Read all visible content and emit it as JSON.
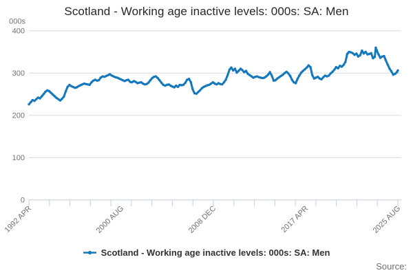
{
  "header": {
    "title": "Scotland - Working age inactive levels: 000s: SA: Men"
  },
  "footer": {
    "source_label": "Source:"
  },
  "colors": {
    "line": "#1478be",
    "grid": "#d9d9d9",
    "axis": "#c2cedb",
    "tick_label": "#707070",
    "title_text": "#262626"
  },
  "chart_data": {
    "type": "line",
    "title": "Scotland - Working age inactive levels: 000s: SA: Men",
    "unit_label": "000s",
    "ylabel": "000s",
    "xlabel": "",
    "ylim": [
      0,
      400
    ],
    "y_ticks": [
      0,
      100,
      200,
      300,
      400
    ],
    "x_range": [
      1992.25,
      2025.67
    ],
    "x_tick_labels": [
      "1992 APR",
      "2000 AUG",
      "2008 DEC",
      "2017 APR",
      "2025 AUG"
    ],
    "minor_tick_count": 19,
    "grid": true,
    "legend_position": "bottom",
    "series": [
      {
        "name": "Scotland - Working age inactive levels: 000s: SA: Men",
        "color": "#1478be",
        "points": [
          [
            1992.25,
            226
          ],
          [
            1992.42,
            231
          ],
          [
            1992.58,
            236
          ],
          [
            1992.75,
            234
          ],
          [
            1992.92,
            238
          ],
          [
            1993.08,
            242
          ],
          [
            1993.25,
            240
          ],
          [
            1993.42,
            245
          ],
          [
            1993.58,
            250
          ],
          [
            1993.75,
            256
          ],
          [
            1993.92,
            259
          ],
          [
            1994.08,
            257
          ],
          [
            1994.25,
            253
          ],
          [
            1994.42,
            249
          ],
          [
            1994.58,
            245
          ],
          [
            1994.75,
            241
          ],
          [
            1994.92,
            238
          ],
          [
            1995.08,
            235
          ],
          [
            1995.25,
            239
          ],
          [
            1995.42,
            244
          ],
          [
            1995.58,
            256
          ],
          [
            1995.75,
            267
          ],
          [
            1995.92,
            272
          ],
          [
            1996.08,
            269
          ],
          [
            1996.25,
            267
          ],
          [
            1996.42,
            265
          ],
          [
            1996.58,
            266
          ],
          [
            1996.75,
            269
          ],
          [
            1996.92,
            271
          ],
          [
            1997.08,
            273
          ],
          [
            1997.25,
            275
          ],
          [
            1997.42,
            274
          ],
          [
            1997.58,
            273
          ],
          [
            1997.75,
            272
          ],
          [
            1997.92,
            278
          ],
          [
            1998.08,
            282
          ],
          [
            1998.25,
            284
          ],
          [
            1998.42,
            282
          ],
          [
            1998.58,
            283
          ],
          [
            1998.75,
            289
          ],
          [
            1998.92,
            292
          ],
          [
            1999.08,
            291
          ],
          [
            1999.25,
            293
          ],
          [
            1999.42,
            295
          ],
          [
            1999.58,
            297
          ],
          [
            1999.75,
            294
          ],
          [
            1999.92,
            292
          ],
          [
            2000.08,
            290
          ],
          [
            2000.25,
            289
          ],
          [
            2000.42,
            287
          ],
          [
            2000.58,
            285
          ],
          [
            2000.75,
            283
          ],
          [
            2000.92,
            281
          ],
          [
            2001.08,
            283
          ],
          [
            2001.25,
            284
          ],
          [
            2001.42,
            279
          ],
          [
            2001.58,
            278
          ],
          [
            2001.75,
            281
          ],
          [
            2001.92,
            279
          ],
          [
            2002.08,
            276
          ],
          [
            2002.25,
            277
          ],
          [
            2002.42,
            278
          ],
          [
            2002.58,
            275
          ],
          [
            2002.75,
            273
          ],
          [
            2002.92,
            274
          ],
          [
            2003.08,
            277
          ],
          [
            2003.25,
            283
          ],
          [
            2003.42,
            288
          ],
          [
            2003.58,
            291
          ],
          [
            2003.75,
            292
          ],
          [
            2003.92,
            288
          ],
          [
            2004.08,
            283
          ],
          [
            2004.25,
            277
          ],
          [
            2004.42,
            272
          ],
          [
            2004.58,
            270
          ],
          [
            2004.75,
            272
          ],
          [
            2004.92,
            273
          ],
          [
            2005.08,
            270
          ],
          [
            2005.25,
            268
          ],
          [
            2005.42,
            266
          ],
          [
            2005.58,
            270
          ],
          [
            2005.75,
            267
          ],
          [
            2005.92,
            272
          ],
          [
            2006.08,
            271
          ],
          [
            2006.25,
            272
          ],
          [
            2006.42,
            277
          ],
          [
            2006.58,
            284
          ],
          [
            2006.75,
            286
          ],
          [
            2006.92,
            278
          ],
          [
            2007.08,
            262
          ],
          [
            2007.25,
            252
          ],
          [
            2007.42,
            251
          ],
          [
            2007.58,
            255
          ],
          [
            2007.75,
            259
          ],
          [
            2007.92,
            264
          ],
          [
            2008.08,
            267
          ],
          [
            2008.25,
            269
          ],
          [
            2008.42,
            271
          ],
          [
            2008.58,
            272
          ],
          [
            2008.75,
            275
          ],
          [
            2008.92,
            278
          ],
          [
            2009.08,
            275
          ],
          [
            2009.25,
            273
          ],
          [
            2009.42,
            276
          ],
          [
            2009.58,
            274
          ],
          [
            2009.75,
            273
          ],
          [
            2009.92,
            278
          ],
          [
            2010.08,
            284
          ],
          [
            2010.25,
            295
          ],
          [
            2010.42,
            308
          ],
          [
            2010.58,
            313
          ],
          [
            2010.75,
            306
          ],
          [
            2010.92,
            310
          ],
          [
            2011.08,
            301
          ],
          [
            2011.25,
            305
          ],
          [
            2011.42,
            310
          ],
          [
            2011.58,
            307
          ],
          [
            2011.75,
            302
          ],
          [
            2011.92,
            305
          ],
          [
            2012.08,
            298
          ],
          [
            2012.25,
            295
          ],
          [
            2012.42,
            292
          ],
          [
            2012.58,
            289
          ],
          [
            2012.75,
            291
          ],
          [
            2012.92,
            292
          ],
          [
            2013.08,
            290
          ],
          [
            2013.25,
            289
          ],
          [
            2013.42,
            288
          ],
          [
            2013.58,
            289
          ],
          [
            2013.75,
            292
          ],
          [
            2013.92,
            296
          ],
          [
            2014.08,
            302
          ],
          [
            2014.25,
            294
          ],
          [
            2014.42,
            282
          ],
          [
            2014.58,
            283
          ],
          [
            2014.75,
            287
          ],
          [
            2014.92,
            290
          ],
          [
            2015.08,
            293
          ],
          [
            2015.25,
            296
          ],
          [
            2015.42,
            300
          ],
          [
            2015.58,
            303
          ],
          [
            2015.75,
            299
          ],
          [
            2015.92,
            293
          ],
          [
            2016.08,
            284
          ],
          [
            2016.25,
            278
          ],
          [
            2016.42,
            276
          ],
          [
            2016.58,
            286
          ],
          [
            2016.75,
            294
          ],
          [
            2016.92,
            301
          ],
          [
            2017.08,
            305
          ],
          [
            2017.25,
            309
          ],
          [
            2017.42,
            313
          ],
          [
            2017.58,
            318
          ],
          [
            2017.75,
            314
          ],
          [
            2017.92,
            295
          ],
          [
            2018.08,
            287
          ],
          [
            2018.25,
            289
          ],
          [
            2018.42,
            291
          ],
          [
            2018.58,
            287
          ],
          [
            2018.75,
            285
          ],
          [
            2018.92,
            290
          ],
          [
            2019.08,
            294
          ],
          [
            2019.25,
            292
          ],
          [
            2019.42,
            294
          ],
          [
            2019.58,
            299
          ],
          [
            2019.75,
            303
          ],
          [
            2019.92,
            308
          ],
          [
            2020.08,
            314
          ],
          [
            2020.25,
            311
          ],
          [
            2020.42,
            317
          ],
          [
            2020.58,
            315
          ],
          [
            2020.75,
            319
          ],
          [
            2020.92,
            326
          ],
          [
            2021.08,
            345
          ],
          [
            2021.25,
            350
          ],
          [
            2021.42,
            349
          ],
          [
            2021.58,
            347
          ],
          [
            2021.75,
            343
          ],
          [
            2021.92,
            346
          ],
          [
            2022.08,
            339
          ],
          [
            2022.25,
            342
          ],
          [
            2022.42,
            353
          ],
          [
            2022.58,
            346
          ],
          [
            2022.75,
            350
          ],
          [
            2022.92,
            344
          ],
          [
            2023.08,
            345
          ],
          [
            2023.25,
            347
          ],
          [
            2023.42,
            335
          ],
          [
            2023.58,
            338
          ],
          [
            2023.67,
            360
          ],
          [
            2023.75,
            354
          ],
          [
            2023.92,
            344
          ],
          [
            2024.08,
            336
          ],
          [
            2024.25,
            339
          ],
          [
            2024.42,
            340
          ],
          [
            2024.58,
            330
          ],
          [
            2024.75,
            320
          ],
          [
            2024.92,
            310
          ],
          [
            2025.08,
            304
          ],
          [
            2025.25,
            296
          ],
          [
            2025.42,
            298
          ],
          [
            2025.58,
            302
          ],
          [
            2025.67,
            306
          ]
        ]
      }
    ]
  }
}
